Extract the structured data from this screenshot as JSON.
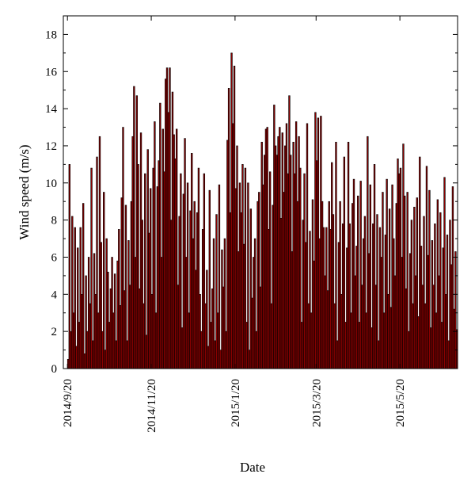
{
  "chart_data": {
    "type": "bar",
    "title": "",
    "xlabel": "Date",
    "ylabel": "Wind speed (m/s)",
    "ylim": [
      0,
      19
    ],
    "yticks": [
      0,
      2,
      4,
      6,
      8,
      10,
      12,
      14,
      16,
      18
    ],
    "x_start": "2014/9/17",
    "x_end": "2015/6/30",
    "xticks": [
      "2014/9/20",
      "2014/11/20",
      "2015/1/20",
      "2015/3/20",
      "2015/5/20"
    ],
    "bar_color": "#8B0000",
    "edge_color": "#000000",
    "grid": false,
    "legend": "none",
    "segments": [
      {
        "from": "2014/9/20",
        "to": "2014/10/10",
        "wind_speed": [
          0.5,
          11,
          2,
          8.2,
          3,
          7.6,
          1.2,
          6.5,
          2.5,
          7.6,
          4,
          8.9,
          0.8,
          5,
          2,
          6,
          3.5,
          10.8,
          1.5,
          6.2,
          4
        ]
      },
      {
        "from": "2014/10/11",
        "to": "2014/10/31",
        "wind_speed": [
          11.4,
          3,
          12.5,
          6.8,
          2,
          9.5,
          1,
          7,
          5.2,
          2.5,
          4.3,
          6,
          3,
          5.1,
          1.5,
          5.8,
          7.5,
          3.4,
          9.2,
          13,
          4.2
        ]
      },
      {
        "from": "2014/11/1",
        "to": "2014/11/21",
        "wind_speed": [
          8.8,
          1.5,
          6.9,
          4.5,
          9,
          12.5,
          15.2,
          6,
          14.7,
          11,
          4.3,
          12.7,
          8,
          3.5,
          10.5,
          1.8,
          11.8,
          7.3,
          9.7,
          4,
          10.8
        ]
      },
      {
        "from": "2014/11/22",
        "to": "2014/12/12",
        "wind_speed": [
          13.3,
          3,
          9.8,
          11.2,
          14.3,
          6,
          12.9,
          10.6,
          15.6,
          16.2,
          13.8,
          16.2,
          8,
          14.9,
          12.6,
          11.3,
          12.9,
          4.5,
          8.2,
          10.5,
          2.2
        ]
      },
      {
        "from": "2014/12/13",
        "to": "2015/1/2",
        "wind_speed": [
          9.4,
          12.4,
          6,
          10,
          3,
          8.5,
          11.6,
          7,
          9,
          5.3,
          8.4,
          10.8,
          4,
          2,
          7.5,
          10.5,
          3.5,
          5.3,
          1.2,
          9.6,
          2.5
        ]
      },
      {
        "from": "2015/1/3",
        "to": "2015/1/23",
        "wind_speed": [
          4.3,
          7,
          1.5,
          8.3,
          3,
          9.9,
          1,
          6.4,
          4.4,
          7,
          2,
          12.3,
          15.1,
          8.4,
          17,
          13.2,
          16.3,
          9.7,
          12,
          6.3,
          10
        ]
      },
      {
        "from": "2015/1/24",
        "to": "2015/2/13",
        "wind_speed": [
          8.4,
          11,
          6.7,
          10.8,
          2.5,
          10,
          1,
          8.6,
          3.8,
          6,
          7,
          2,
          9,
          9.5,
          4.4,
          12.2,
          9.9,
          11.5,
          12.9,
          13,
          7.5
        ]
      },
      {
        "from": "2015/2/14",
        "to": "2015/3/6",
        "wind_speed": [
          10.6,
          3.5,
          8.8,
          14.2,
          12,
          11.5,
          12.5,
          13,
          8.1,
          12.7,
          9.5,
          12,
          13.2,
          10.5,
          14.7,
          11.5,
          6.3,
          12.2,
          10.5,
          13.3,
          9
        ]
      },
      {
        "from": "2015/3/7",
        "to": "2015/3/27",
        "wind_speed": [
          12.5,
          10.8,
          2.5,
          8,
          10.5,
          6.8,
          13.2,
          3.5,
          7.4,
          3,
          9.1,
          5.8,
          13.8,
          11.2,
          13.5,
          7,
          13.6,
          9,
          7.6,
          5,
          7.6
        ]
      },
      {
        "from": "2015/3/28",
        "to": "2015/4/17",
        "wind_speed": [
          4.2,
          9,
          7.5,
          11.1,
          8.3,
          3.5,
          12.2,
          1.5,
          6.8,
          9,
          4,
          7.8,
          11.4,
          2.5,
          6.5,
          12.2,
          7.8,
          3,
          8.9,
          10.2,
          5
        ]
      },
      {
        "from": "2015/4/18",
        "to": "2015/5/8",
        "wind_speed": [
          6.6,
          9.3,
          2.5,
          10.1,
          4.5,
          7,
          8.2,
          3,
          12.5,
          6.2,
          9.9,
          2.2,
          7.8,
          11,
          4.5,
          8.3,
          1.5,
          7.6,
          6,
          9.5,
          3
        ]
      },
      {
        "from": "2015/5/9",
        "to": "2015/5/29",
        "wind_speed": [
          7.2,
          10.2,
          4,
          8.6,
          3.3,
          9.9,
          7,
          5,
          8.9,
          11.3,
          10.5,
          10.8,
          6,
          12.1,
          9.3,
          4.3,
          9.5,
          2,
          6.2,
          8,
          3.5
        ]
      },
      {
        "from": "2015/5/30",
        "to": "2015/6/30",
        "wind_speed": [
          8.7,
          5,
          9.2,
          2.8,
          11.4,
          6.6,
          4.5,
          8.2,
          3.5,
          10.9,
          6.1,
          9.6,
          2.2,
          6.9,
          4.5,
          7.8,
          3,
          9.1,
          5,
          8.4,
          2.5,
          6.5,
          10.3,
          4,
          7.2,
          1.5,
          8,
          5.6,
          9.8,
          3.2,
          6.3,
          2.1
        ]
      }
    ]
  }
}
